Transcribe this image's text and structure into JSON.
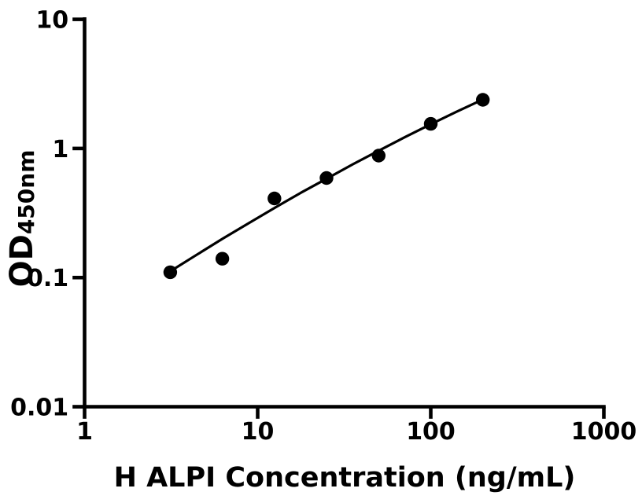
{
  "figure": {
    "background_color": "#ffffff",
    "foreground_color": "#000000"
  },
  "chart_data": {
    "type": "scatter",
    "title": "",
    "xlabel": "H ALPI Concentration (ng/mL)",
    "ylabel_main": "OD",
    "ylabel_sub": "450nm",
    "x_scale": "log",
    "y_scale": "log",
    "xlim": [
      1,
      1000
    ],
    "ylim": [
      0.01,
      10
    ],
    "x_ticks": [
      1,
      10,
      100,
      1000
    ],
    "x_tick_labels": [
      "1",
      "10",
      "100",
      "1000"
    ],
    "y_ticks": [
      0.01,
      0.1,
      1,
      10
    ],
    "y_tick_labels": [
      "0.01",
      "0.1",
      "1",
      "10"
    ],
    "grid": false,
    "legend": null,
    "series": [
      {
        "name": "standard-curve-points",
        "marker": "filled-circle",
        "color": "#000000",
        "x": [
          3.125,
          6.25,
          12.5,
          25,
          50,
          100,
          200
        ],
        "y": [
          0.11,
          0.14,
          0.41,
          0.59,
          0.88,
          1.55,
          2.38
        ]
      }
    ],
    "fit_curve": {
      "name": "fitted-standard-curve",
      "color": "#000000",
      "points": [
        [
          3.13,
          0.112
        ],
        [
          4.47,
          0.151
        ],
        [
          6.31,
          0.201
        ],
        [
          8.91,
          0.265
        ],
        [
          12.59,
          0.348
        ],
        [
          17.78,
          0.454
        ],
        [
          25.12,
          0.585
        ],
        [
          35.48,
          0.755
        ],
        [
          50.12,
          0.962
        ],
        [
          70.79,
          1.222
        ],
        [
          100.0,
          1.539
        ],
        [
          141.3,
          1.926
        ],
        [
          200.0,
          2.393
        ]
      ]
    }
  }
}
